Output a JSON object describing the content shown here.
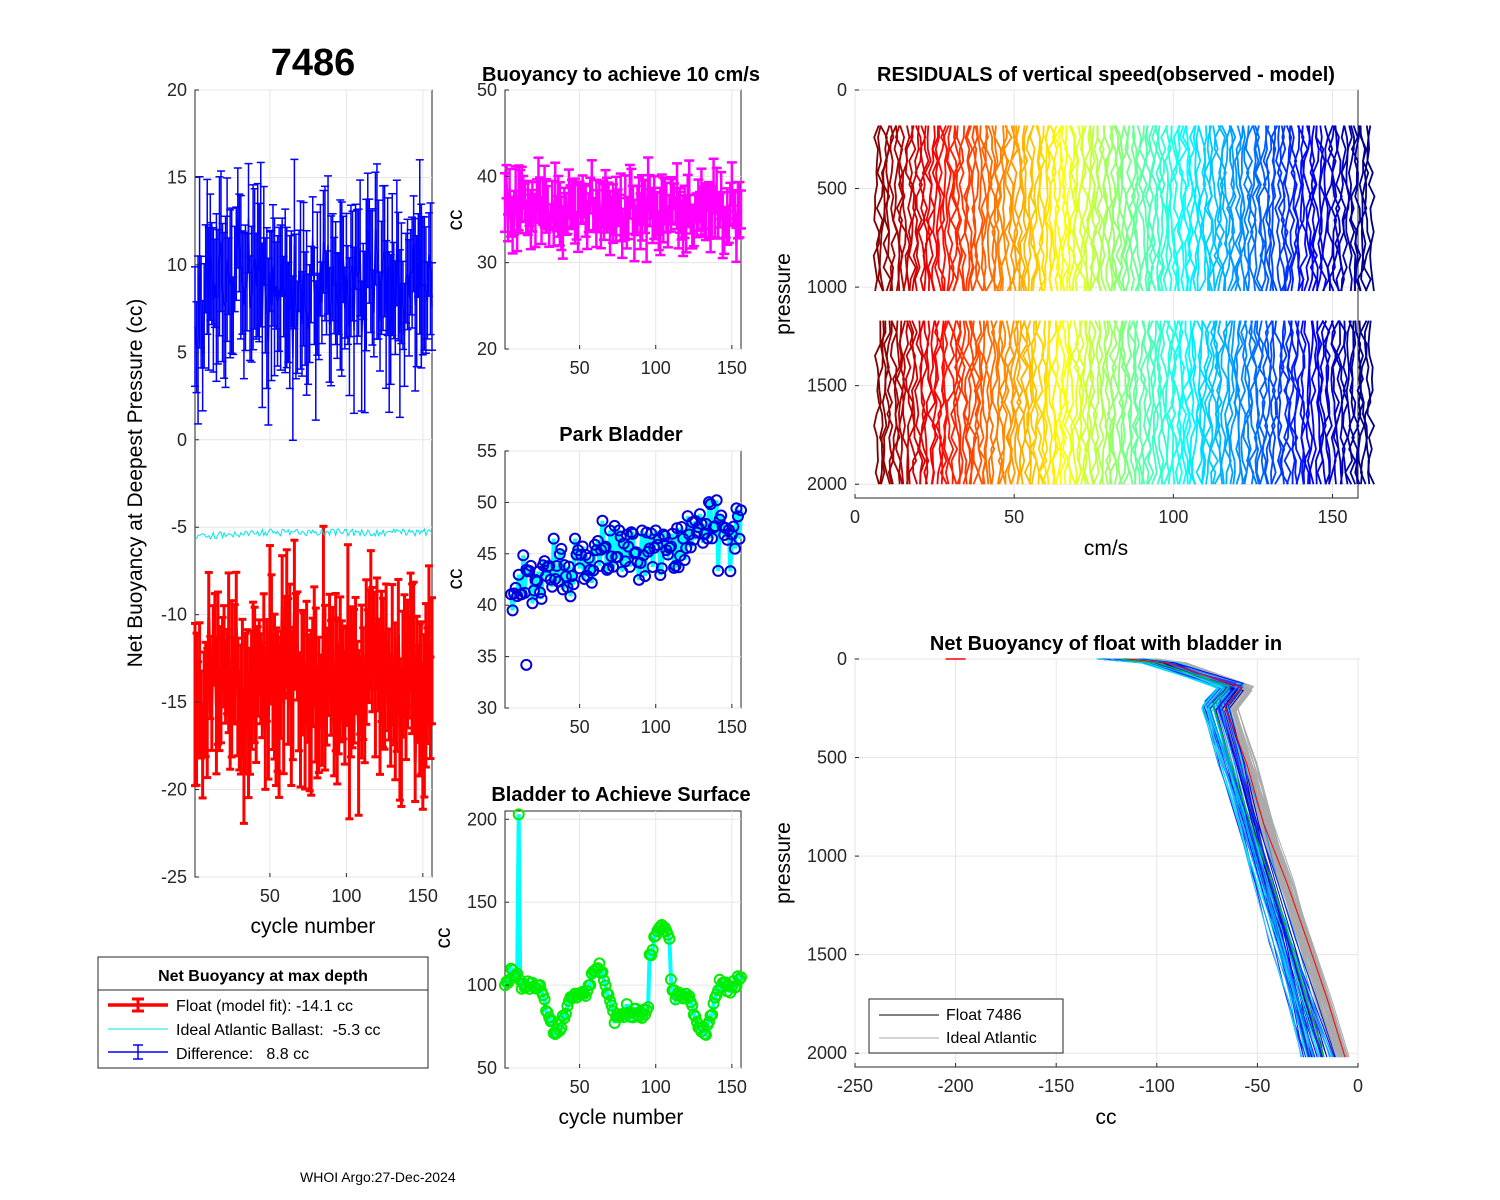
{
  "figure": {
    "float_id": "7486",
    "footer": "WHOI Argo:27-Dec-2024"
  },
  "chart_data": [
    {
      "id": "net",
      "type": "errorbar",
      "title": "",
      "xlabel": "cycle number",
      "ylabel": "Net Buoyancy at Deepest Pressure (cc)",
      "xlim": [
        1,
        156
      ],
      "ylim": [
        -25,
        20
      ],
      "xticks": [
        50,
        100,
        150
      ],
      "yticks": [
        -25,
        -20,
        -15,
        -10,
        -5,
        0,
        5,
        10,
        15,
        20
      ],
      "series": [
        {
          "name": "Float (model fit)",
          "color": "#ff0000",
          "center": -14.1,
          "spread": 2.6,
          "err": 3.4
        },
        {
          "name": "Ideal Atlantic Ballast",
          "color": "#00e5ee",
          "center": -5.3,
          "spread": 0.2
        },
        {
          "name": "Difference",
          "color": "#0000ff",
          "center": 8.8,
          "spread": 2.7,
          "err": 3.6
        }
      ],
      "legend": {
        "title": "Net Buoyancy at max depth",
        "entries": [
          "Float (model fit): -14.1 cc",
          "Ideal Atlantic Ballast:  -5.3 cc",
          "Difference:   8.8 cc"
        ]
      }
    },
    {
      "id": "b10",
      "type": "errorbar",
      "title": "Buoyancy to achieve 10 cm/s",
      "xlabel": "",
      "ylabel": "cc",
      "xlim": [
        1,
        156
      ],
      "ylim": [
        20,
        50
      ],
      "xticks": [
        50,
        100,
        150
      ],
      "yticks": [
        20,
        30,
        40,
        50
      ],
      "color": "#ff00ff",
      "center": 36.3,
      "spread": 2.0,
      "err": 2.8
    },
    {
      "id": "park",
      "type": "line-markers",
      "title": "Park Bladder",
      "xlabel": "",
      "ylabel": "cc",
      "xlim": [
        1,
        156
      ],
      "ylim": [
        30,
        55
      ],
      "xticks": [
        50,
        100,
        150
      ],
      "yticks": [
        30,
        35,
        40,
        45,
        50,
        55
      ],
      "line_color": "#00ffff",
      "marker_color": "#0000dd",
      "trend": [
        42,
        48
      ]
    },
    {
      "id": "surf",
      "type": "line-markers",
      "title": "Bladder to Achieve Surface",
      "xlabel": "cycle number",
      "ylabel": "cc",
      "xlim": [
        1,
        156
      ],
      "ylim": [
        50,
        205
      ],
      "xticks": [
        50,
        100,
        150
      ],
      "yticks": [
        50,
        100,
        150,
        200
      ],
      "line_color": "#00ffff",
      "marker_color": "#00ee00",
      "spike": {
        "cycle": 10,
        "value": 203
      }
    },
    {
      "id": "resid",
      "type": "profiles",
      "title": "RESIDUALS of vertical speed(observed - model)",
      "xlabel": "cm/s",
      "ylabel": "pressure",
      "xlim": [
        0,
        158
      ],
      "ylim": [
        0,
        2070
      ],
      "xticks": [
        0,
        50,
        100,
        150
      ],
      "yticks": [
        0,
        500,
        1000,
        1500,
        2000
      ],
      "y_reversed": true,
      "ascent_range": [
        180,
        1020
      ],
      "descent_range": [
        1170,
        2000
      ],
      "colormap": "jet"
    },
    {
      "id": "nbprof",
      "type": "line",
      "title": "Net Buoyancy of float with bladder in",
      "xlabel": "cc",
      "ylabel": "pressure",
      "xlim": [
        -250,
        0
      ],
      "ylim": [
        0,
        2070
      ],
      "xticks": [
        -250,
        -200,
        -150,
        -100,
        -50,
        0
      ],
      "yticks": [
        0,
        500,
        1000,
        1500,
        2000
      ],
      "y_reversed": true,
      "legend": {
        "entries": [
          "Float 7486",
          "Ideal Atlantic"
        ]
      }
    }
  ]
}
